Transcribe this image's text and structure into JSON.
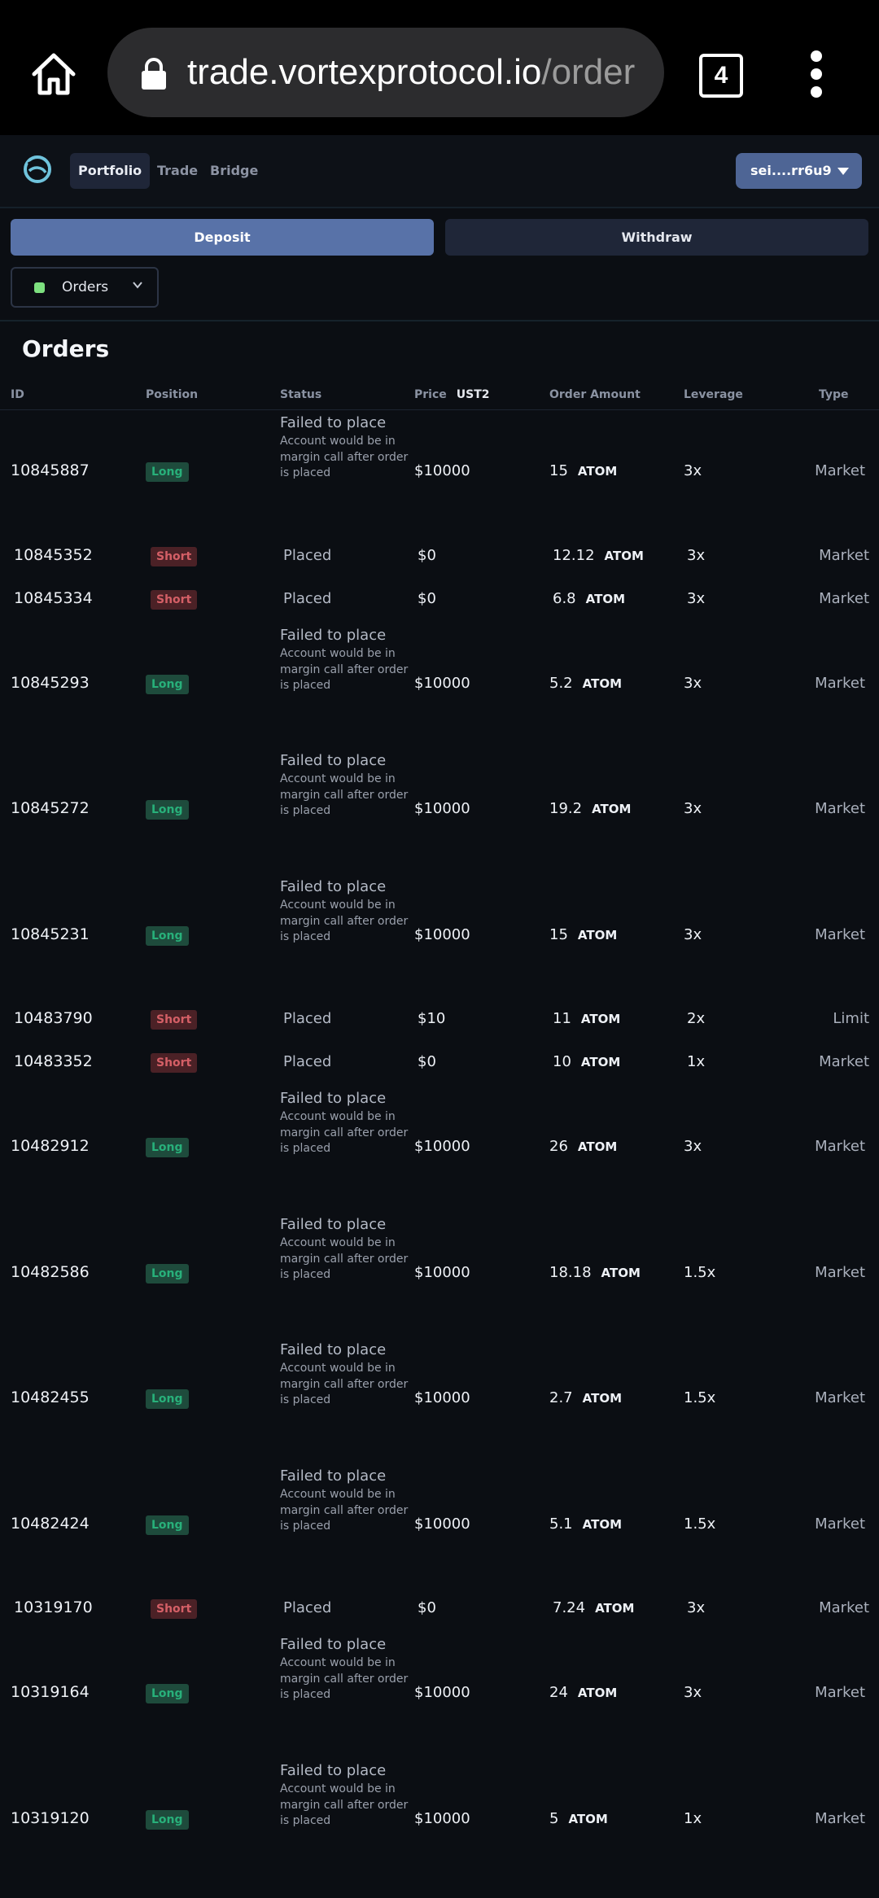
{
  "browser": {
    "url_host": "trade.vortexprotocol.io",
    "url_path": "/order",
    "tab_count": "4"
  },
  "nav": {
    "tabs": [
      "Portfolio",
      "Trade",
      "Bridge"
    ],
    "wallet": "sei....rr6u9"
  },
  "actions": {
    "deposit": "Deposit",
    "withdraw": "Withdraw"
  },
  "filter": {
    "selected": "Orders",
    "dot_color": "#7de07f"
  },
  "page_title": "Orders",
  "table": {
    "headers": {
      "id": "ID",
      "position": "Position",
      "status": "Status",
      "price": "Price",
      "price_unit": "UST2",
      "amount": "Order Amount",
      "leverage": "Leverage",
      "type": "Type"
    },
    "failed_detail": "Account would be in margin call after order is placed",
    "rows": [
      {
        "id": "10845887",
        "position": "Long",
        "status": "Failed to place",
        "detail": "Account would be in margin call after order is placed",
        "price": "$10000",
        "amount": "15",
        "asset": "ATOM",
        "leverage": "3x",
        "type": "Market"
      },
      {
        "id": "10845352",
        "position": "Short",
        "status": "Placed",
        "detail": "",
        "price": "$0",
        "amount": "12.12",
        "asset": "ATOM",
        "leverage": "3x",
        "type": "Market"
      },
      {
        "id": "10845334",
        "position": "Short",
        "status": "Placed",
        "detail": "",
        "price": "$0",
        "amount": "6.8",
        "asset": "ATOM",
        "leverage": "3x",
        "type": "Market"
      },
      {
        "id": "10845293",
        "position": "Long",
        "status": "Failed to place",
        "detail": "Account would be in margin call after order is placed",
        "price": "$10000",
        "amount": "5.2",
        "asset": "ATOM",
        "leverage": "3x",
        "type": "Market"
      },
      {
        "id": "10845272",
        "position": "Long",
        "status": "Failed to place",
        "detail": "Account would be in margin call after order is placed",
        "price": "$10000",
        "amount": "19.2",
        "asset": "ATOM",
        "leverage": "3x",
        "type": "Market"
      },
      {
        "id": "10845231",
        "position": "Long",
        "status": "Failed to place",
        "detail": "Account would be in margin call after order is placed",
        "price": "$10000",
        "amount": "15",
        "asset": "ATOM",
        "leverage": "3x",
        "type": "Market"
      },
      {
        "id": "10483790",
        "position": "Short",
        "status": "Placed",
        "detail": "",
        "price": "$10",
        "amount": "11",
        "asset": "ATOM",
        "leverage": "2x",
        "type": "Limit"
      },
      {
        "id": "10483352",
        "position": "Short",
        "status": "Placed",
        "detail": "",
        "price": "$0",
        "amount": "10",
        "asset": "ATOM",
        "leverage": "1x",
        "type": "Market"
      },
      {
        "id": "10482912",
        "position": "Long",
        "status": "Failed to place",
        "detail": "Account would be in margin call after order is placed",
        "price": "$10000",
        "amount": "26",
        "asset": "ATOM",
        "leverage": "3x",
        "type": "Market"
      },
      {
        "id": "10482586",
        "position": "Long",
        "status": "Failed to place",
        "detail": "Account would be in margin call after order is placed",
        "price": "$10000",
        "amount": "18.18",
        "asset": "ATOM",
        "leverage": "1.5x",
        "type": "Market"
      },
      {
        "id": "10482455",
        "position": "Long",
        "status": "Failed to place",
        "detail": "Account would be in margin call after order is placed",
        "price": "$10000",
        "amount": "2.7",
        "asset": "ATOM",
        "leverage": "1.5x",
        "type": "Market"
      },
      {
        "id": "10482424",
        "position": "Long",
        "status": "Failed to place",
        "detail": "Account would be in margin call after order is placed",
        "price": "$10000",
        "amount": "5.1",
        "asset": "ATOM",
        "leverage": "1.5x",
        "type": "Market"
      },
      {
        "id": "10319170",
        "position": "Short",
        "status": "Placed",
        "detail": "",
        "price": "$0",
        "amount": "7.24",
        "asset": "ATOM",
        "leverage": "3x",
        "type": "Market"
      },
      {
        "id": "10319164",
        "position": "Long",
        "status": "Failed to place",
        "detail": "Account would be in margin call after order is placed",
        "price": "$10000",
        "amount": "24",
        "asset": "ATOM",
        "leverage": "3x",
        "type": "Market"
      },
      {
        "id": "10319120",
        "position": "Long",
        "status": "Failed to place",
        "detail": "Account would be in margin call after order is placed",
        "price": "$10000",
        "amount": "5",
        "asset": "ATOM",
        "leverage": "1x",
        "type": "Market"
      }
    ]
  }
}
